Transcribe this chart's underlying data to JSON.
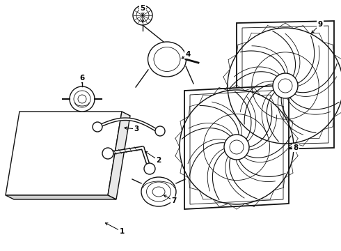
{
  "background_color": "#ffffff",
  "line_color": "#111111",
  "label_color": "#000000",
  "fig_width": 4.9,
  "fig_height": 3.6,
  "dpi": 100
}
